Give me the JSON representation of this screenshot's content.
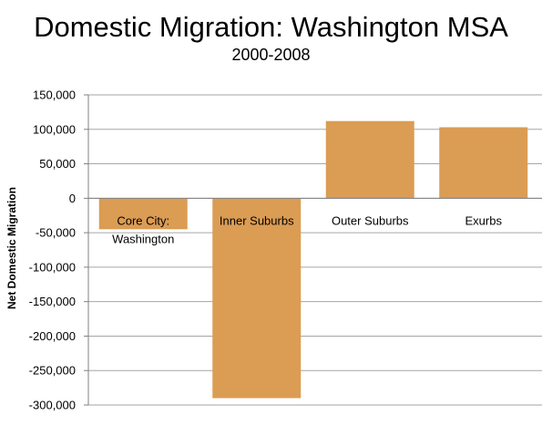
{
  "chart_data": {
    "type": "bar",
    "title": "Domestic Migration: Washington MSA",
    "subtitle": "2000-2008",
    "ylabel": "Net Domestic Migration",
    "xlabel": "",
    "categories": [
      "Core City:\nWashington",
      "Inner Suburbs",
      "Outer Suburbs",
      "Exurbs"
    ],
    "values": [
      -45000,
      -290000,
      112000,
      103000
    ],
    "ylim": [
      -300000,
      150000
    ],
    "yticks": [
      150000,
      100000,
      50000,
      0,
      -50000,
      -100000,
      -150000,
      -200000,
      -250000,
      -300000
    ],
    "ytick_labels": [
      "150,000",
      "100,000",
      "50,000",
      "0",
      "-50,000",
      "-100,000",
      "-150,000",
      "-200,000",
      "-250,000",
      "-300,000"
    ],
    "grid": true,
    "legend": "none",
    "bar_color": "#DB9C54",
    "grid_color": "#A6A6A6"
  }
}
